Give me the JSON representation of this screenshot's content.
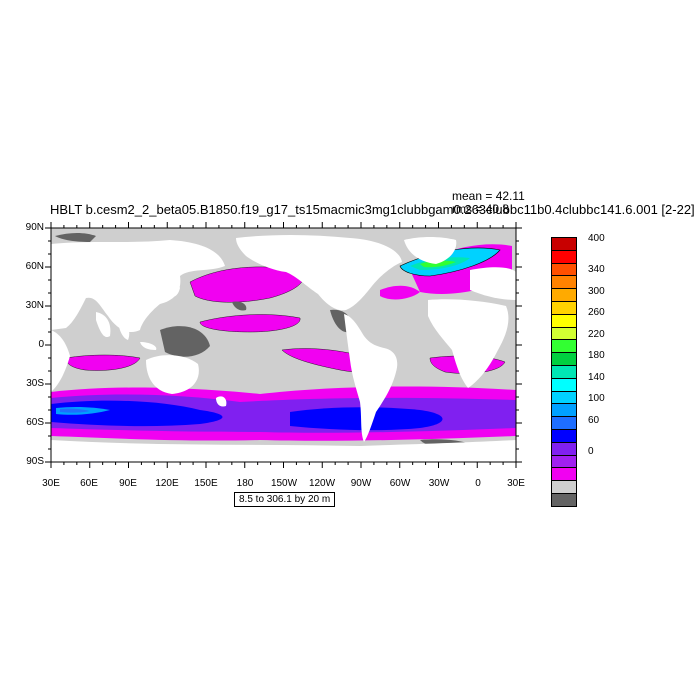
{
  "title": "HBLT  b.cesm2_2_beta05.B1850.f19_g17_ts15macmic3mg1clubbgam0.263clubbc11b0.4clubbc141.6.001 [2-22]",
  "stats": {
    "mean": "mean = 42.11",
    "rms": "rms = 40.8"
  },
  "info": "8.5 to 306.1 by 20 m",
  "lat_labels": [
    "90N",
    "60N",
    "30N",
    "0",
    "30S",
    "60S",
    "90S"
  ],
  "lon_labels": [
    "30E",
    "60E",
    "90E",
    "120E",
    "150E",
    "180",
    "150W",
    "120W",
    "90W",
    "60W",
    "30W",
    "0",
    "30E"
  ],
  "colorbar": {
    "colors": [
      "#636363",
      "#cfcfcf",
      "#f101f1",
      "#a020f0",
      "#8020f0",
      "#0000ff",
      "#1e6eff",
      "#00a0ff",
      "#00d2ff",
      "#00ffff",
      "#00e6b4",
      "#00d040",
      "#32ff32",
      "#d2ff32",
      "#ffff00",
      "#ffd200",
      "#ffaa00",
      "#ff8200",
      "#ff5000",
      "#ff0000",
      "#c80000"
    ],
    "labels": [
      "0",
      "60",
      "100",
      "140",
      "180",
      "220",
      "260",
      "300",
      "340",
      "400"
    ]
  },
  "colors": {
    "land": "#ffffff",
    "ocean_low": "#cfcfcf",
    "ocean_zero": "#636363",
    "magenta": "#f101f1",
    "purple": "#8020f0",
    "blue": "#0000ff",
    "lightblue": "#00a0ff"
  }
}
